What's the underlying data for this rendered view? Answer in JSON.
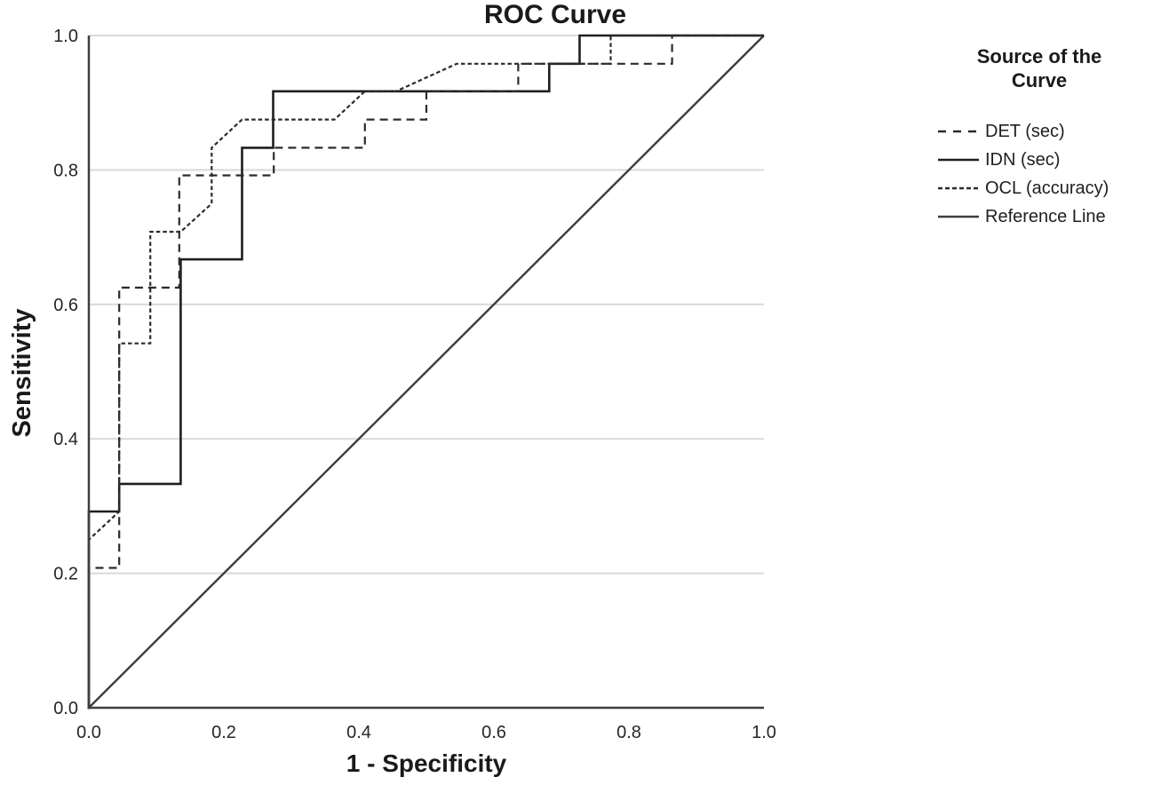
{
  "page": {
    "background": "#ffffff"
  },
  "legend": {
    "title": "Source of the Curve"
  },
  "chart_data": {
    "type": "line",
    "title": "ROC Curve",
    "xlabel": "1 - Specificity",
    "ylabel": "Sensitivity",
    "xlim": [
      0,
      1
    ],
    "ylim": [
      0,
      1
    ],
    "x_ticks": [
      "0.0",
      "0.2",
      "0.4",
      "0.6",
      "0.8",
      "1.0"
    ],
    "y_ticks": [
      "0.0",
      "0.2",
      "0.4",
      "0.6",
      "0.8",
      "1.0"
    ],
    "grid": "horizontal-only",
    "gridline_color": "#d9d9d9",
    "axis_color": "#3f3f3f",
    "text_color": "#1a1a1a",
    "legend_position": "right",
    "series": [
      {
        "name": "DET (sec)",
        "line_style": "long-dash",
        "color": "#2b2b2b",
        "points": [
          [
            0,
            0
          ],
          [
            0,
            0.208
          ],
          [
            0.045,
            0.208
          ],
          [
            0.045,
            0.625
          ],
          [
            0.134,
            0.625
          ],
          [
            0.134,
            0.792
          ],
          [
            0.274,
            0.792
          ],
          [
            0.274,
            0.833
          ],
          [
            0.409,
            0.833
          ],
          [
            0.409,
            0.875
          ],
          [
            0.5,
            0.875
          ],
          [
            0.5,
            0.917
          ],
          [
            0.636,
            0.917
          ],
          [
            0.636,
            0.958
          ],
          [
            0.864,
            0.958
          ],
          [
            0.864,
            1
          ],
          [
            1,
            1
          ]
        ]
      },
      {
        "name": "IDN (sec)",
        "line_style": "solid",
        "color": "#1f1f1f",
        "points": [
          [
            0,
            0
          ],
          [
            0,
            0.292
          ],
          [
            0.045,
            0.292
          ],
          [
            0.045,
            0.333
          ],
          [
            0.136,
            0.333
          ],
          [
            0.136,
            0.667
          ],
          [
            0.227,
            0.667
          ],
          [
            0.227,
            0.833
          ],
          [
            0.273,
            0.833
          ],
          [
            0.273,
            0.917
          ],
          [
            0.682,
            0.917
          ],
          [
            0.682,
            0.958
          ],
          [
            0.727,
            0.958
          ],
          [
            0.727,
            1
          ],
          [
            1,
            1
          ]
        ]
      },
      {
        "name": "OCL (accuracy)",
        "line_style": "short-dash",
        "color": "#2b2b2b",
        "points": [
          [
            0,
            0
          ],
          [
            0,
            0.25
          ],
          [
            0.045,
            0.292
          ],
          [
            0.045,
            0.542
          ],
          [
            0.091,
            0.542
          ],
          [
            0.091,
            0.708
          ],
          [
            0.136,
            0.708
          ],
          [
            0.182,
            0.75
          ],
          [
            0.182,
            0.833
          ],
          [
            0.227,
            0.875
          ],
          [
            0.364,
            0.875
          ],
          [
            0.409,
            0.917
          ],
          [
            0.455,
            0.917
          ],
          [
            0.545,
            0.958
          ],
          [
            0.773,
            0.958
          ],
          [
            0.773,
            1
          ],
          [
            1,
            1
          ]
        ]
      },
      {
        "name": "Reference Line",
        "line_style": "solid",
        "color": "#3c3c3c",
        "points": [
          [
            0,
            0
          ],
          [
            1,
            1
          ]
        ]
      }
    ]
  }
}
